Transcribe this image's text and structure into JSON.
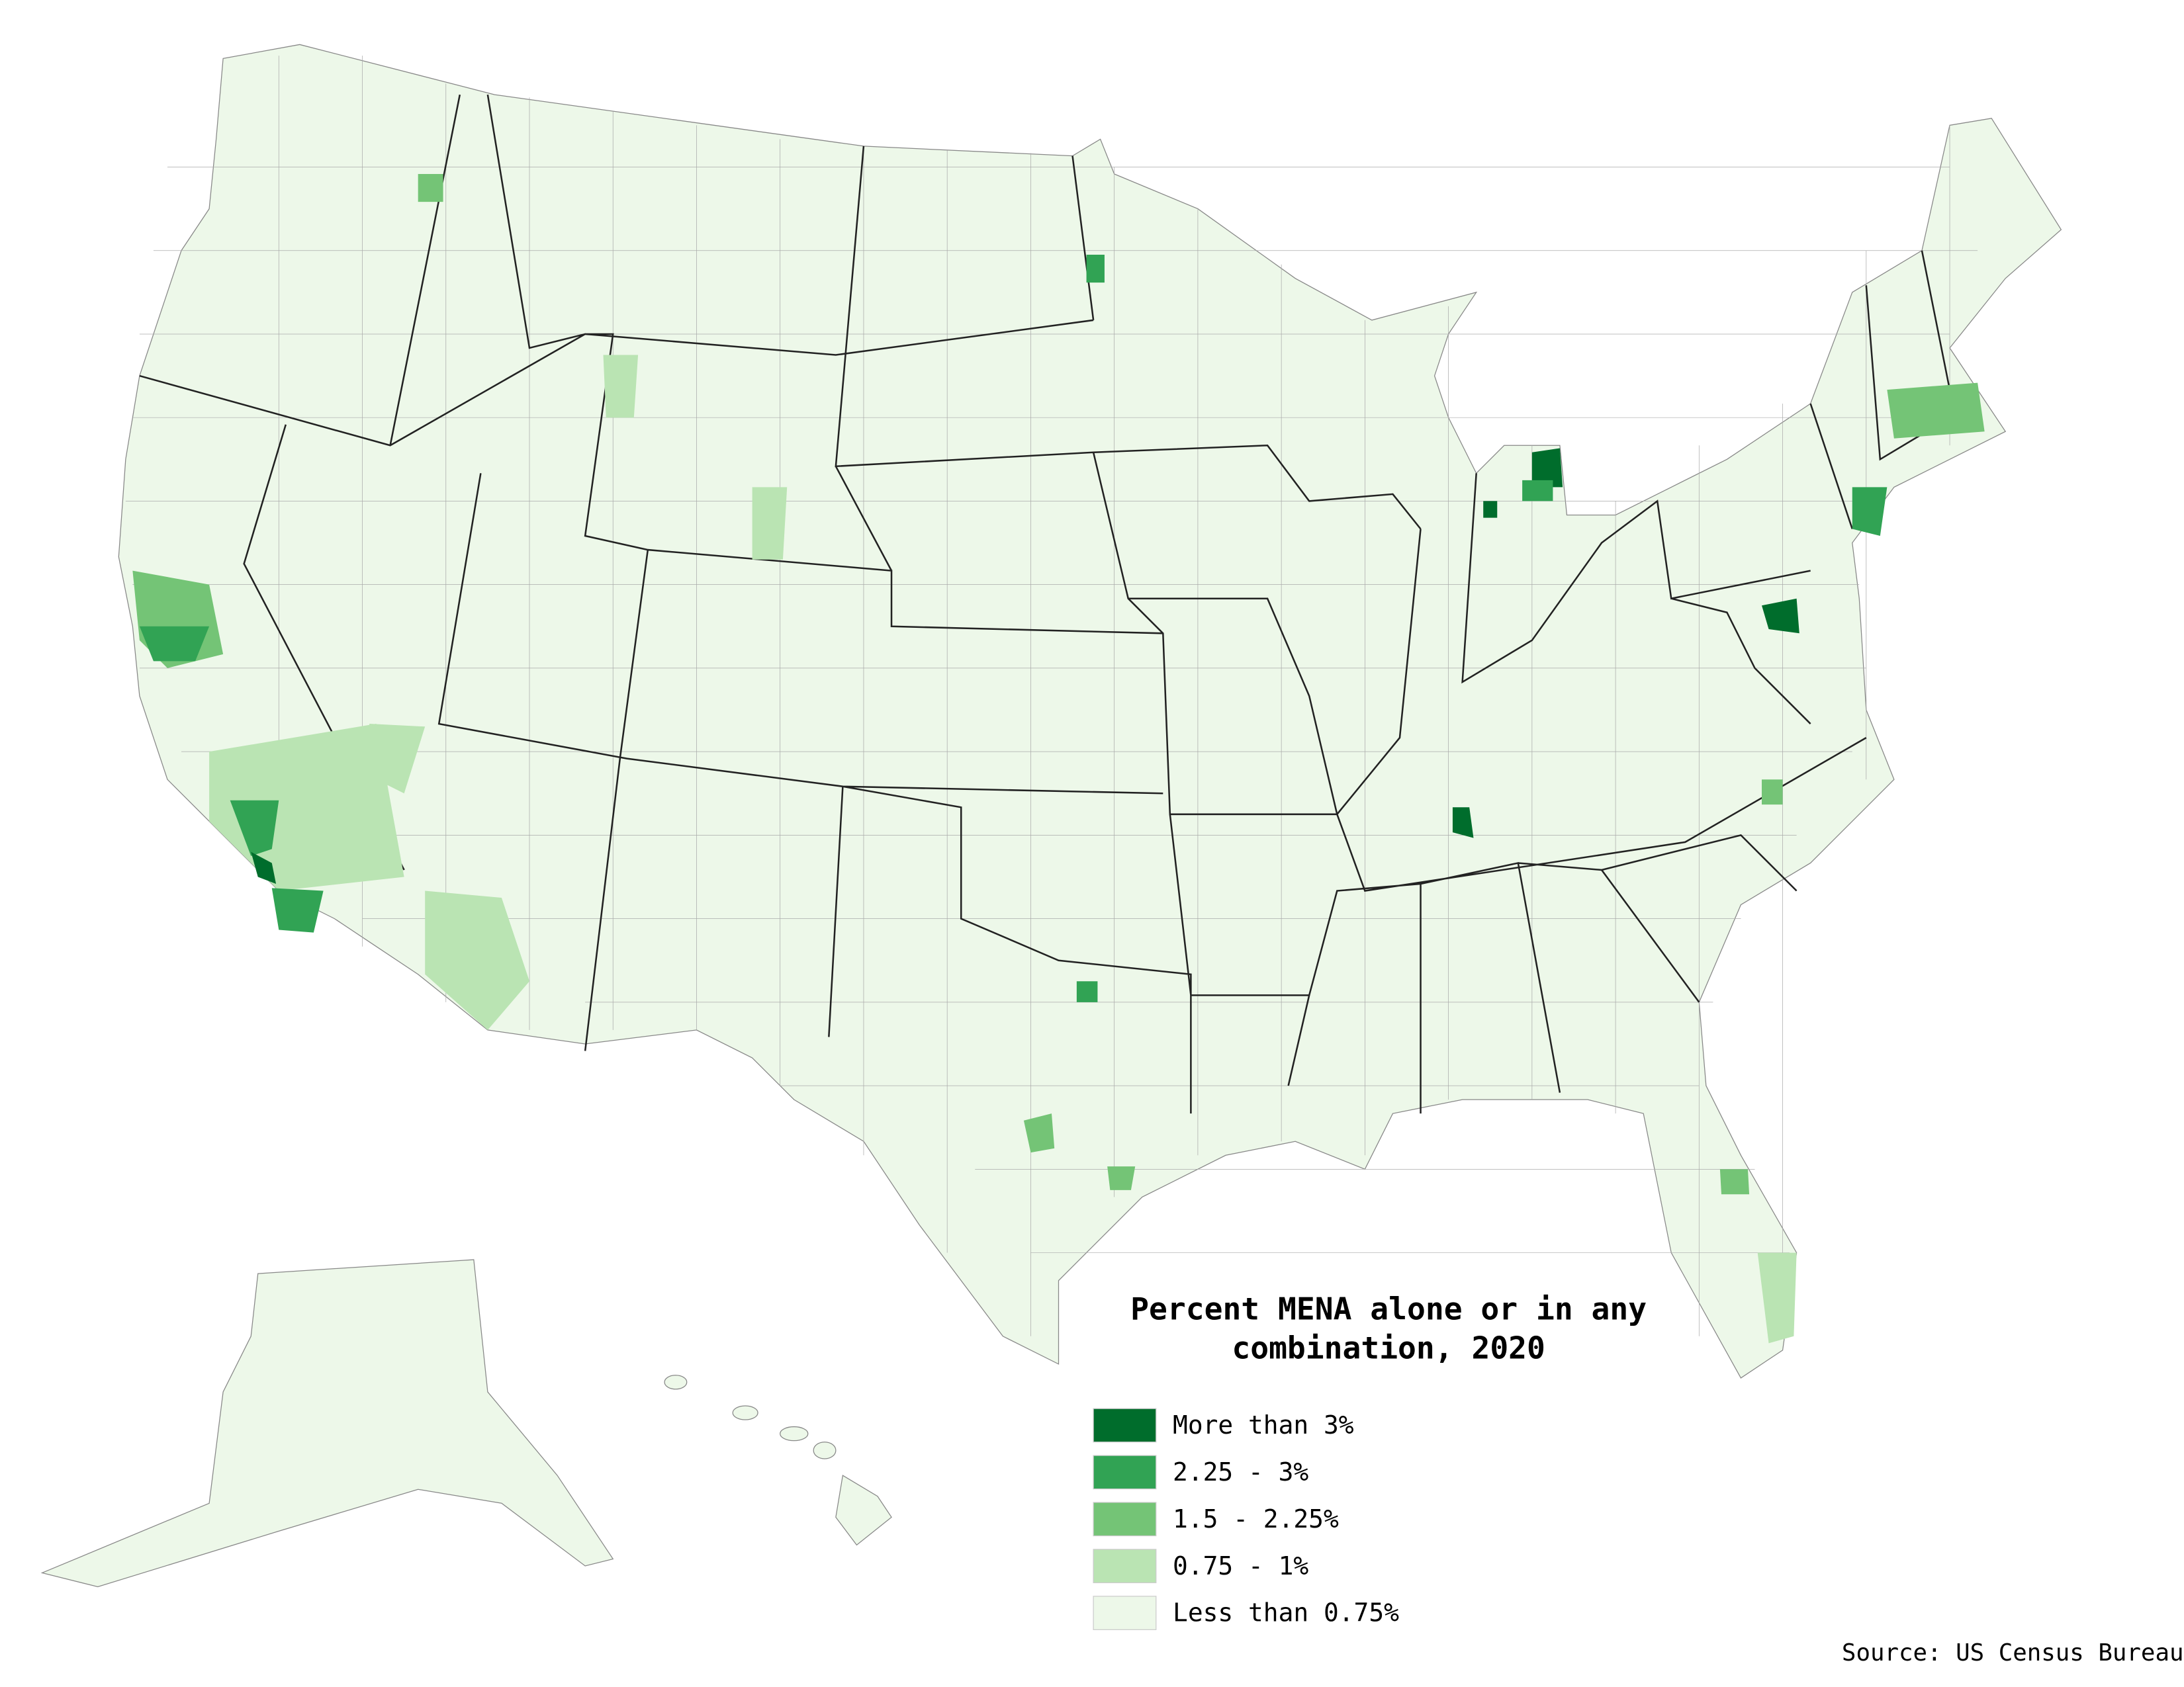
{
  "title_lines": [
    "Percent MENA alone or in any",
    "combination, 2020"
  ],
  "legend": [
    {
      "label": "More than 3%",
      "color": "#006d2c"
    },
    {
      "label": "2.25 - 3%",
      "color": "#31a354"
    },
    {
      "label": "1.5 - 2.25%",
      "color": "#74c476"
    },
    {
      "label": "0.75 - 1%",
      "color": "#bae4b3"
    },
    {
      "label": "Less than 0.75%",
      "color": "#edf8e9"
    }
  ],
  "source": "Source: US Census Bureau"
}
